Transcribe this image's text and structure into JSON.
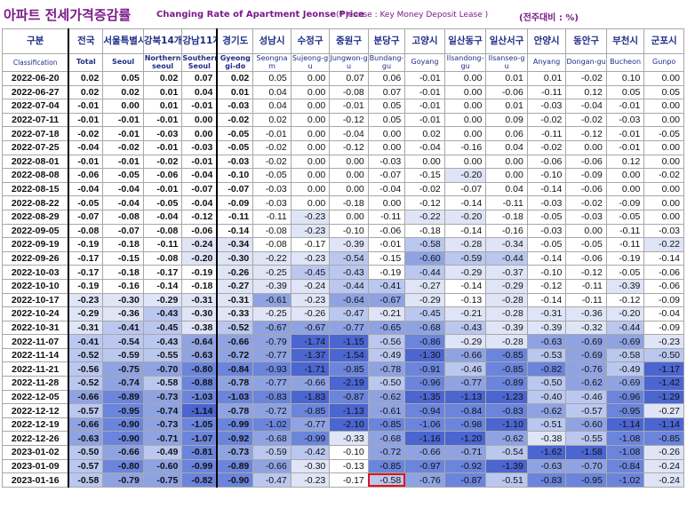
{
  "header": {
    "title_ko": "아파트 전세가격증감률",
    "title_en": "Changing Rate of Apartment Jeonse Price",
    "note_prefix": "(",
    "note_star": "*",
    "note_text": " Jeonse : Key Money Deposit Lease )",
    "unit": "(전주대비 : %)"
  },
  "colors": {
    "title": "#7b1a8a",
    "header_text": "#1f2d86",
    "highlight_border": "#e11414",
    "scale": [
      "#ffffff",
      "#dfe5f6",
      "#bac7ef",
      "#8fa3e3",
      "#6b85dc",
      "#4b65d1"
    ]
  },
  "chart_data": {
    "type": "table",
    "title": "아파트 전세가격증감률 Changing Rate of Apartment Jeonse Price",
    "unit": "전주대비 : %",
    "columns": [
      {
        "ko": "구분",
        "en": "Classification"
      },
      {
        "ko": "전국",
        "en": "Total"
      },
      {
        "ko": "서울특별시",
        "en": "Seoul"
      },
      {
        "ko": "강북14개구",
        "en": "Northern seoul"
      },
      {
        "ko": "강남11개구",
        "en": "Southern Seoul"
      },
      {
        "ko": "경기도",
        "en": "Gyeonggi-do"
      },
      {
        "ko": "성남시",
        "en": "Seongnam"
      },
      {
        "ko": "수정구",
        "en": "Sujeong-gu"
      },
      {
        "ko": "중원구",
        "en": "Jungwon-gu"
      },
      {
        "ko": "분당구",
        "en": "Bundang-gu"
      },
      {
        "ko": "고양시",
        "en": "Goyang"
      },
      {
        "ko": "일산동구",
        "en": "Ilsandong-gu"
      },
      {
        "ko": "일산서구",
        "en": "Ilsanseo-gu"
      },
      {
        "ko": "안양시",
        "en": "Anyang"
      },
      {
        "ko": "동안구",
        "en": "Dongan-gu"
      },
      {
        "ko": "부천시",
        "en": "Bucheon"
      },
      {
        "ko": "군포시",
        "en": "Gunpo"
      }
    ],
    "rows": [
      {
        "date": "2022-06-20",
        "values": [
          "0.02",
          "0.05",
          "0.02",
          "0.07",
          "0.02",
          "0.05",
          "0.00",
          "0.07",
          "0.06",
          "-0.01",
          "0.00",
          "0.01",
          "0.01",
          "-0.02",
          "0.10",
          "0.00"
        ]
      },
      {
        "date": "2022-06-27",
        "values": [
          "0.02",
          "0.02",
          "0.01",
          "0.04",
          "0.01",
          "0.04",
          "0.00",
          "-0.08",
          "0.07",
          "-0.01",
          "0.00",
          "-0.06",
          "-0.11",
          "0.12",
          "0.05",
          "0.05"
        ]
      },
      {
        "date": "2022-07-04",
        "values": [
          "-0.01",
          "0.00",
          "0.01",
          "-0.01",
          "-0.03",
          "0.04",
          "0.00",
          "-0.01",
          "0.05",
          "-0.01",
          "0.00",
          "0.01",
          "-0.03",
          "-0.04",
          "-0.01",
          "0.00"
        ]
      },
      {
        "date": "2022-07-11",
        "values": [
          "-0.01",
          "-0.01",
          "-0.01",
          "0.00",
          "-0.02",
          "0.02",
          "0.00",
          "-0.12",
          "0.05",
          "-0.01",
          "0.00",
          "0.09",
          "-0.02",
          "-0.02",
          "-0.03",
          "0.00"
        ]
      },
      {
        "date": "2022-07-18",
        "values": [
          "-0.02",
          "-0.01",
          "-0.03",
          "0.00",
          "-0.05",
          "-0.01",
          "0.00",
          "-0.04",
          "0.00",
          "0.02",
          "0.00",
          "0.06",
          "-0.11",
          "-0.12",
          "-0.01",
          "-0.05"
        ]
      },
      {
        "date": "2022-07-25",
        "values": [
          "-0.04",
          "-0.02",
          "-0.01",
          "-0.03",
          "-0.05",
          "-0.02",
          "0.00",
          "-0.12",
          "0.00",
          "-0.04",
          "-0.16",
          "0.04",
          "-0.02",
          "0.00",
          "-0.01",
          "0.00"
        ]
      },
      {
        "date": "2022-08-01",
        "values": [
          "-0.01",
          "-0.01",
          "-0.02",
          "-0.01",
          "-0.03",
          "-0.02",
          "0.00",
          "0.00",
          "-0.03",
          "0.00",
          "0.00",
          "0.00",
          "-0.06",
          "-0.06",
          "0.12",
          "0.00"
        ]
      },
      {
        "date": "2022-08-08",
        "values": [
          "-0.06",
          "-0.05",
          "-0.06",
          "-0.04",
          "-0.10",
          "-0.05",
          "0.00",
          "0.00",
          "-0.07",
          "-0.15",
          "-0.20",
          "0.00",
          "-0.10",
          "-0.09",
          "0.00",
          "-0.02"
        ]
      },
      {
        "date": "2022-08-15",
        "values": [
          "-0.04",
          "-0.04",
          "-0.01",
          "-0.07",
          "-0.07",
          "-0.03",
          "0.00",
          "0.00",
          "-0.04",
          "-0.02",
          "-0.07",
          "0.04",
          "-0.14",
          "-0.06",
          "0.00",
          "0.00"
        ]
      },
      {
        "date": "2022-08-22",
        "values": [
          "-0.05",
          "-0.04",
          "-0.05",
          "-0.04",
          "-0.09",
          "-0.03",
          "0.00",
          "-0.18",
          "0.00",
          "-0.12",
          "-0.14",
          "-0.11",
          "-0.03",
          "-0.02",
          "-0.09",
          "0.00"
        ]
      },
      {
        "date": "2022-08-29",
        "values": [
          "-0.07",
          "-0.08",
          "-0.04",
          "-0.12",
          "-0.11",
          "-0.11",
          "-0.23",
          "0.00",
          "-0.11",
          "-0.22",
          "-0.20",
          "-0.18",
          "-0.05",
          "-0.03",
          "-0.05",
          "0.00"
        ]
      },
      {
        "date": "2022-09-05",
        "values": [
          "-0.08",
          "-0.07",
          "-0.08",
          "-0.06",
          "-0.14",
          "-0.08",
          "-0.23",
          "-0.10",
          "-0.06",
          "-0.18",
          "-0.14",
          "-0.16",
          "-0.03",
          "0.00",
          "-0.11",
          "-0.03"
        ]
      },
      {
        "date": "2022-09-19",
        "values": [
          "-0.19",
          "-0.18",
          "-0.11",
          "-0.24",
          "-0.34",
          "-0.08",
          "-0.17",
          "-0.39",
          "-0.01",
          "-0.58",
          "-0.28",
          "-0.34",
          "-0.05",
          "-0.05",
          "-0.11",
          "-0.22"
        ]
      },
      {
        "date": "2022-09-26",
        "values": [
          "-0.17",
          "-0.15",
          "-0.08",
          "-0.20",
          "-0.30",
          "-0.22",
          "-0.23",
          "-0.54",
          "-0.15",
          "-0.60",
          "-0.59",
          "-0.44",
          "-0.14",
          "-0.06",
          "-0.19",
          "-0.14"
        ]
      },
      {
        "date": "2022-10-03",
        "values": [
          "-0.17",
          "-0.18",
          "-0.17",
          "-0.19",
          "-0.26",
          "-0.25",
          "-0.45",
          "-0.43",
          "-0.19",
          "-0.44",
          "-0.29",
          "-0.37",
          "-0.10",
          "-0.12",
          "-0.05",
          "-0.06"
        ]
      },
      {
        "date": "2022-10-10",
        "values": [
          "-0.19",
          "-0.16",
          "-0.14",
          "-0.18",
          "-0.27",
          "-0.39",
          "-0.24",
          "-0.44",
          "-0.41",
          "-0.27",
          "-0.14",
          "-0.29",
          "-0.12",
          "-0.11",
          "-0.39",
          "-0.06"
        ]
      },
      {
        "date": "2022-10-17",
        "values": [
          "-0.23",
          "-0.30",
          "-0.29",
          "-0.31",
          "-0.31",
          "-0.61",
          "-0.23",
          "-0.64",
          "-0.67",
          "-0.29",
          "-0.13",
          "-0.28",
          "-0.14",
          "-0.11",
          "-0.12",
          "-0.09"
        ]
      },
      {
        "date": "2022-10-24",
        "values": [
          "-0.29",
          "-0.36",
          "-0.43",
          "-0.30",
          "-0.33",
          "-0.25",
          "-0.26",
          "-0.47",
          "-0.21",
          "-0.45",
          "-0.21",
          "-0.28",
          "-0.31",
          "-0.36",
          "-0.20",
          "-0.04"
        ]
      },
      {
        "date": "2022-10-31",
        "values": [
          "-0.31",
          "-0.41",
          "-0.45",
          "-0.38",
          "-0.52",
          "-0.67",
          "-0.67",
          "-0.77",
          "-0.65",
          "-0.68",
          "-0.43",
          "-0.39",
          "-0.39",
          "-0.32",
          "-0.44",
          "-0.09"
        ]
      },
      {
        "date": "2022-11-07",
        "values": [
          "-0.41",
          "-0.54",
          "-0.43",
          "-0.64",
          "-0.66",
          "-0.79",
          "-1.74",
          "-1.15",
          "-0.56",
          "-0.86",
          "-0.29",
          "-0.28",
          "-0.63",
          "-0.69",
          "-0.69",
          "-0.23"
        ]
      },
      {
        "date": "2022-11-14",
        "values": [
          "-0.52",
          "-0.59",
          "-0.55",
          "-0.63",
          "-0.72",
          "-0.77",
          "-1.37",
          "-1.54",
          "-0.49",
          "-1.30",
          "-0.66",
          "-0.85",
          "-0.53",
          "-0.69",
          "-0.58",
          "-0.50"
        ]
      },
      {
        "date": "2022-11-21",
        "values": [
          "-0.56",
          "-0.75",
          "-0.70",
          "-0.80",
          "-0.84",
          "-0.93",
          "-1.71",
          "-0.85",
          "-0.78",
          "-0.91",
          "-0.46",
          "-0.85",
          "-0.82",
          "-0.76",
          "-0.49",
          "-1.17"
        ]
      },
      {
        "date": "2022-11-28",
        "values": [
          "-0.52",
          "-0.74",
          "-0.58",
          "-0.88",
          "-0.78",
          "-0.77",
          "-0.66",
          "-2.19",
          "-0.50",
          "-0.96",
          "-0.77",
          "-0.89",
          "-0.50",
          "-0.62",
          "-0.69",
          "-1.42"
        ]
      },
      {
        "date": "2022-12-05",
        "values": [
          "-0.66",
          "-0.89",
          "-0.73",
          "-1.03",
          "-1.03",
          "-0.83",
          "-1.83",
          "-0.87",
          "-0.62",
          "-1.35",
          "-1.13",
          "-1.23",
          "-0.40",
          "-0.46",
          "-0.96",
          "-1.29"
        ]
      },
      {
        "date": "2022-12-12",
        "values": [
          "-0.57",
          "-0.95",
          "-0.74",
          "-1.14",
          "-0.78",
          "-0.72",
          "-0.85",
          "-1.13",
          "-0.61",
          "-0.94",
          "-0.84",
          "-0.83",
          "-0.62",
          "-0.57",
          "-0.95",
          "-0.27"
        ]
      },
      {
        "date": "2022-12-19",
        "values": [
          "-0.66",
          "-0.90",
          "-0.73",
          "-1.05",
          "-0.99",
          "-1.02",
          "-0.77",
          "-2.10",
          "-0.85",
          "-1.06",
          "-0.98",
          "-1.10",
          "-0.51",
          "-0.60",
          "-1.14",
          "-1.14"
        ]
      },
      {
        "date": "2022-12-26",
        "values": [
          "-0.63",
          "-0.90",
          "-0.71",
          "-1.07",
          "-0.92",
          "-0.68",
          "-0.99",
          "-0.33",
          "-0.68",
          "-1.16",
          "-1.20",
          "-0.62",
          "-0.38",
          "-0.55",
          "-1.08",
          "-0.85"
        ]
      },
      {
        "date": "2023-01-02",
        "values": [
          "-0.50",
          "-0.66",
          "-0.49",
          "-0.81",
          "-0.73",
          "-0.59",
          "-0.42",
          "-0.10",
          "-0.72",
          "-0.66",
          "-0.71",
          "-0.54",
          "-1.62",
          "-1.58",
          "-1.08",
          "-0.26"
        ]
      },
      {
        "date": "2023-01-09",
        "values": [
          "-0.57",
          "-0.80",
          "-0.60",
          "-0.99",
          "-0.89",
          "-0.66",
          "-0.30",
          "-0.13",
          "-0.85",
          "-0.97",
          "-0.92",
          "-1.39",
          "-0.63",
          "-0.70",
          "-0.84",
          "-0.24"
        ]
      },
      {
        "date": "2023-01-16",
        "values": [
          "-0.58",
          "-0.79",
          "-0.75",
          "-0.82",
          "-0.90",
          "-0.47",
          "-0.23",
          "-0.17",
          "-0.58",
          "-0.76",
          "-0.87",
          "-0.51",
          "-0.83",
          "-0.95",
          "-1.02",
          "-0.24"
        ]
      }
    ],
    "highlight": {
      "date": "2023-01-16",
      "column": "분당구",
      "value": "-0.58"
    }
  }
}
